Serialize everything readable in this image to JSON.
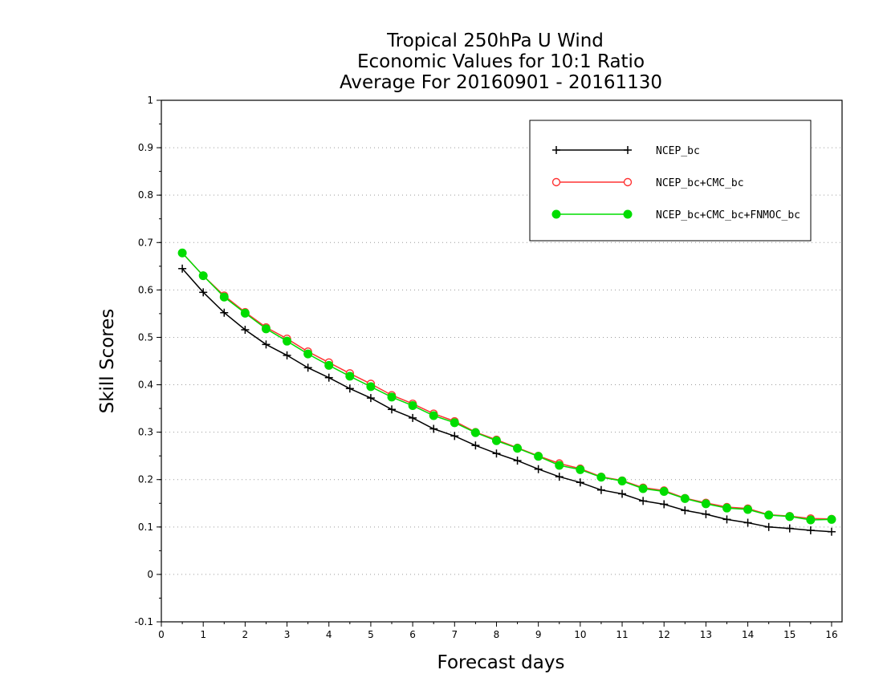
{
  "chart_data": {
    "type": "line",
    "title": [
      "Tropical 250hPa U Wind",
      "Economic Values for 10:1 Ratio",
      "Average For 20160901 - 20161130"
    ],
    "xlabel": "Forecast days",
    "ylabel": "Skill Scores",
    "xlim": [
      0,
      16.25
    ],
    "ylim": [
      -0.1,
      1
    ],
    "xticks": [
      0,
      1,
      2,
      3,
      4,
      5,
      6,
      7,
      8,
      9,
      10,
      11,
      12,
      13,
      14,
      15,
      16
    ],
    "yticks": [
      -0.1,
      0,
      0.1,
      0.2,
      0.3,
      0.4,
      0.5,
      0.6,
      0.7,
      0.8,
      0.9,
      1
    ],
    "ytick_labels": [
      "-0.1",
      "0",
      "0.1",
      "0.2",
      "0.3",
      "0.4",
      "0.5",
      "0.6",
      "0.7",
      "0.8",
      "0.9",
      "1"
    ],
    "grid": "horizontal dotted",
    "legend_position": "top-right",
    "x": [
      0.5,
      1,
      1.5,
      2,
      2.5,
      3,
      3.5,
      4,
      4.5,
      5,
      5.5,
      6,
      6.5,
      7,
      7.5,
      8,
      8.5,
      9,
      9.5,
      10,
      10.5,
      11,
      11.5,
      12,
      12.5,
      13,
      13.5,
      14,
      14.5,
      15,
      15.5,
      16
    ],
    "series": [
      {
        "name": "NCEP_bc",
        "color": "#000000",
        "marker": "plus",
        "values": [
          0.645,
          0.595,
          0.552,
          0.516,
          0.485,
          0.462,
          0.436,
          0.415,
          0.392,
          0.372,
          0.348,
          0.33,
          0.307,
          0.292,
          0.272,
          0.255,
          0.24,
          0.222,
          0.206,
          0.194,
          0.178,
          0.17,
          0.155,
          0.148,
          0.135,
          0.127,
          0.116,
          0.109,
          0.1,
          0.097,
          0.093,
          0.09
        ]
      },
      {
        "name": "NCEP_bc+CMC_bc",
        "color": "#ff3333",
        "marker": "open-circle",
        "values": [
          0.678,
          0.63,
          0.588,
          0.553,
          0.521,
          0.497,
          0.47,
          0.447,
          0.424,
          0.402,
          0.378,
          0.36,
          0.339,
          0.323,
          0.3,
          0.284,
          0.267,
          0.25,
          0.234,
          0.223,
          0.206,
          0.198,
          0.183,
          0.177,
          0.161,
          0.151,
          0.142,
          0.139,
          0.126,
          0.123,
          0.118,
          0.117
        ]
      },
      {
        "name": "NCEP_bc+CMC_bc+FNMOC_bc",
        "color": "#00dd00",
        "marker": "filled-circle",
        "values": [
          0.678,
          0.63,
          0.585,
          0.551,
          0.518,
          0.492,
          0.465,
          0.441,
          0.418,
          0.396,
          0.374,
          0.356,
          0.335,
          0.32,
          0.299,
          0.282,
          0.266,
          0.249,
          0.23,
          0.221,
          0.205,
          0.197,
          0.181,
          0.175,
          0.16,
          0.149,
          0.14,
          0.137,
          0.125,
          0.122,
          0.115,
          0.116
        ]
      }
    ]
  }
}
